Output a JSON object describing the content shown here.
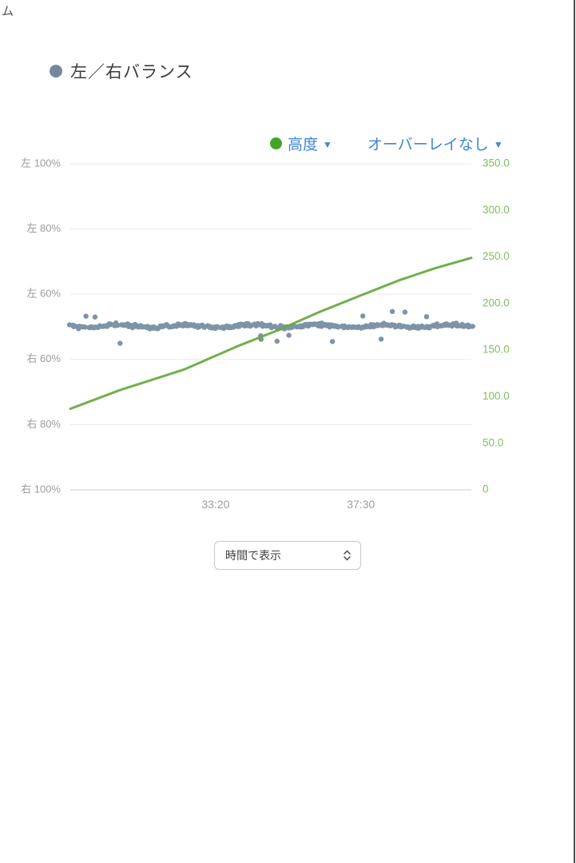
{
  "header": {
    "clipped_text": "ム",
    "title": "左／右バランス"
  },
  "legend": {
    "altitude_label": "高度",
    "overlay_label": "オーバーレイなし",
    "caret": "▼"
  },
  "controls": {
    "display_mode": "時間で表示"
  },
  "colors": {
    "balance_dot": "#74889c",
    "scatter_point": "#5d7a93",
    "altitude_line": "#66a83d",
    "altitude_axis_text": "#7fbf5f",
    "legend_green_dot": "#45a225",
    "link_blue": "#3d86d1",
    "axis_text_gray": "#9c9c9c",
    "gridline": "#ececec",
    "baseline": "#d8d8d8"
  },
  "chart_data": {
    "type": "scatter",
    "title": "左／右バランス",
    "grid": true,
    "legend_position": "top-right",
    "x_axis": {
      "unit": "time (mm:ss)",
      "tick_labels": [
        "33:20",
        "37:30"
      ],
      "tick_seconds": [
        2000,
        2250
      ],
      "range_seconds": [
        1750,
        2440
      ]
    },
    "left_axis": {
      "name": "左／右バランス",
      "tick_labels": [
        "左 100%",
        "左 80%",
        "左 60%",
        "右 60%",
        "右 80%",
        "右 100%"
      ],
      "center_meaning": "50/50 balance at unlabeled midline"
    },
    "right_axis": {
      "name": "高度",
      "tick_labels": [
        "350.0",
        "300.0",
        "250.0",
        "200.0",
        "150.0",
        "100.0",
        "50.0",
        "0"
      ],
      "range": [
        0,
        350
      ]
    },
    "series": [
      {
        "name": "左／右バランス",
        "type": "scatter",
        "mean_percent_left": 50,
        "jitter_percent": 1.7,
        "outlier_rate": 0.035,
        "point_count": 360,
        "seed": 11,
        "color": "#5d7a93"
      },
      {
        "name": "高度",
        "type": "line",
        "x_seconds": [
          1750,
          1835,
          1945,
          2041,
          2110,
          2179,
          2247,
          2316,
          2378,
          2440
        ],
        "values_m": [
          87,
          107,
          129,
          155,
          172,
          191,
          208,
          225,
          238,
          249
        ],
        "color": "#66a83d"
      }
    ]
  }
}
